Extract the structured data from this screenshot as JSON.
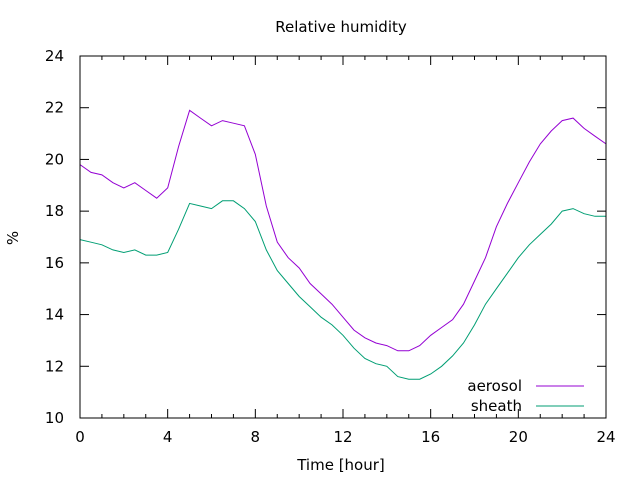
{
  "chart_data": {
    "type": "line",
    "title": "Relative humidity",
    "xlabel": "Time [hour]",
    "ylabel": "%",
    "xlim": [
      0,
      24
    ],
    "ylim": [
      10,
      24
    ],
    "xticks": [
      0,
      4,
      8,
      12,
      16,
      20,
      24
    ],
    "yticks": [
      10,
      12,
      14,
      16,
      18,
      20,
      22,
      24
    ],
    "grid": false,
    "legend_position": "bottom-right",
    "x": [
      0,
      0.5,
      1,
      1.5,
      2,
      2.5,
      3,
      3.5,
      4,
      4.5,
      5,
      5.5,
      6,
      6.5,
      7,
      7.5,
      8,
      8.5,
      9,
      9.5,
      10,
      10.5,
      11,
      11.5,
      12,
      12.5,
      13,
      13.5,
      14,
      14.5,
      15,
      15.5,
      16,
      16.5,
      17,
      17.5,
      18,
      18.5,
      19,
      19.5,
      20,
      20.5,
      21,
      21.5,
      22,
      22.5,
      23,
      23.5,
      24
    ],
    "series": [
      {
        "name": "aerosol",
        "color": "#9400d3",
        "values": [
          19.8,
          19.5,
          19.4,
          19.1,
          18.9,
          19.1,
          18.8,
          18.5,
          18.9,
          20.5,
          21.9,
          21.6,
          21.3,
          21.5,
          21.4,
          21.3,
          20.2,
          18.2,
          16.8,
          16.2,
          15.8,
          15.2,
          14.8,
          14.4,
          13.9,
          13.4,
          13.1,
          12.9,
          12.8,
          12.6,
          12.6,
          12.8,
          13.2,
          13.5,
          13.8,
          14.4,
          15.3,
          16.2,
          17.4,
          18.3,
          19.1,
          19.9,
          20.6,
          21.1,
          21.5,
          21.6,
          21.2,
          20.9,
          20.6
        ]
      },
      {
        "name": "sheath",
        "color": "#009e73",
        "values": [
          16.9,
          16.8,
          16.7,
          16.5,
          16.4,
          16.5,
          16.3,
          16.3,
          16.4,
          17.3,
          18.3,
          18.2,
          18.1,
          18.4,
          18.4,
          18.1,
          17.6,
          16.5,
          15.7,
          15.2,
          14.7,
          14.3,
          13.9,
          13.6,
          13.2,
          12.7,
          12.3,
          12.1,
          12.0,
          11.6,
          11.5,
          11.5,
          11.7,
          12.0,
          12.4,
          12.9,
          13.6,
          14.4,
          15.0,
          15.6,
          16.2,
          16.7,
          17.1,
          17.5,
          18.0,
          18.1,
          17.9,
          17.8,
          17.8
        ]
      }
    ]
  }
}
